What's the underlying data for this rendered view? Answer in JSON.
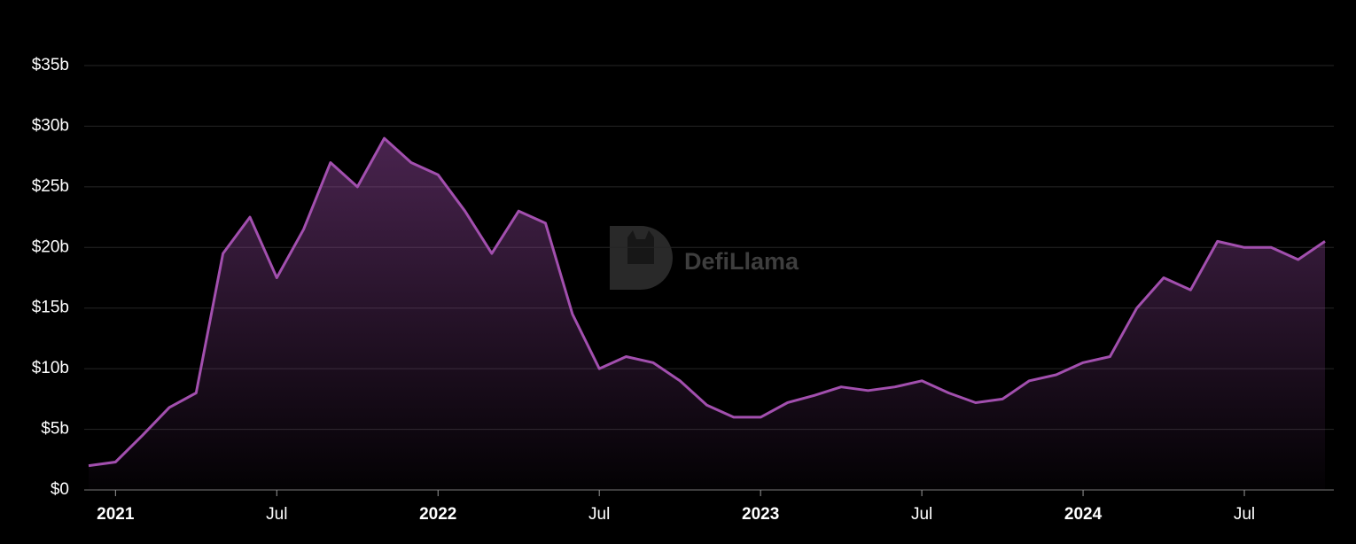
{
  "watermark": "DefiLlama",
  "chart_data": {
    "type": "area",
    "color": "#a24fae",
    "x": [
      "2020-12",
      "2021-01",
      "2021-02",
      "2021-03",
      "2021-04",
      "2021-05",
      "2021-06",
      "2021-07",
      "2021-08",
      "2021-09",
      "2021-10",
      "2021-11",
      "2021-12",
      "2022-01",
      "2022-02",
      "2022-03",
      "2022-04",
      "2022-05",
      "2022-06",
      "2022-07",
      "2022-08",
      "2022-09",
      "2022-10",
      "2022-11",
      "2022-12",
      "2023-01",
      "2023-02",
      "2023-03",
      "2023-04",
      "2023-05",
      "2023-06",
      "2023-07",
      "2023-08",
      "2023-09",
      "2023-10",
      "2023-11",
      "2023-12",
      "2024-01",
      "2024-02",
      "2024-03",
      "2024-04",
      "2024-05",
      "2024-06",
      "2024-07",
      "2024-08",
      "2024-09",
      "2024-10"
    ],
    "values": [
      2.0,
      2.3,
      4.5,
      6.8,
      8.0,
      19.5,
      22.5,
      17.5,
      21.5,
      27,
      25,
      29,
      27,
      26,
      23,
      19.5,
      23,
      22,
      14.5,
      10,
      11,
      10.5,
      9,
      7,
      6,
      6,
      7.2,
      7.8,
      8.5,
      8.2,
      8.5,
      9,
      8,
      7.2,
      7.5,
      9,
      9.5,
      10.5,
      11,
      15,
      17.5,
      16.5,
      20.5,
      20,
      20,
      19,
      20.5
    ],
    "xlim": [
      "2020-12",
      "2024-10"
    ],
    "xticks": [
      {
        "value": "2021-01",
        "label": "2021"
      },
      {
        "value": "2021-07",
        "label": "Jul"
      },
      {
        "value": "2022-01",
        "label": "2022"
      },
      {
        "value": "2022-07",
        "label": "Jul"
      },
      {
        "value": "2023-01",
        "label": "2023"
      },
      {
        "value": "2023-07",
        "label": "Jul"
      },
      {
        "value": "2024-01",
        "label": "2024"
      },
      {
        "value": "2024-07",
        "label": "Jul"
      }
    ],
    "ylim": [
      0,
      35
    ],
    "yticks": [
      {
        "value": 0,
        "label": "$0"
      },
      {
        "value": 5,
        "label": "$5b"
      },
      {
        "value": 10,
        "label": "$10b"
      },
      {
        "value": 15,
        "label": "$15b"
      },
      {
        "value": 20,
        "label": "$20b"
      },
      {
        "value": 25,
        "label": "$25b"
      },
      {
        "value": 30,
        "label": "$30b"
      },
      {
        "value": 35,
        "label": "$35b"
      }
    ],
    "grid": true
  }
}
